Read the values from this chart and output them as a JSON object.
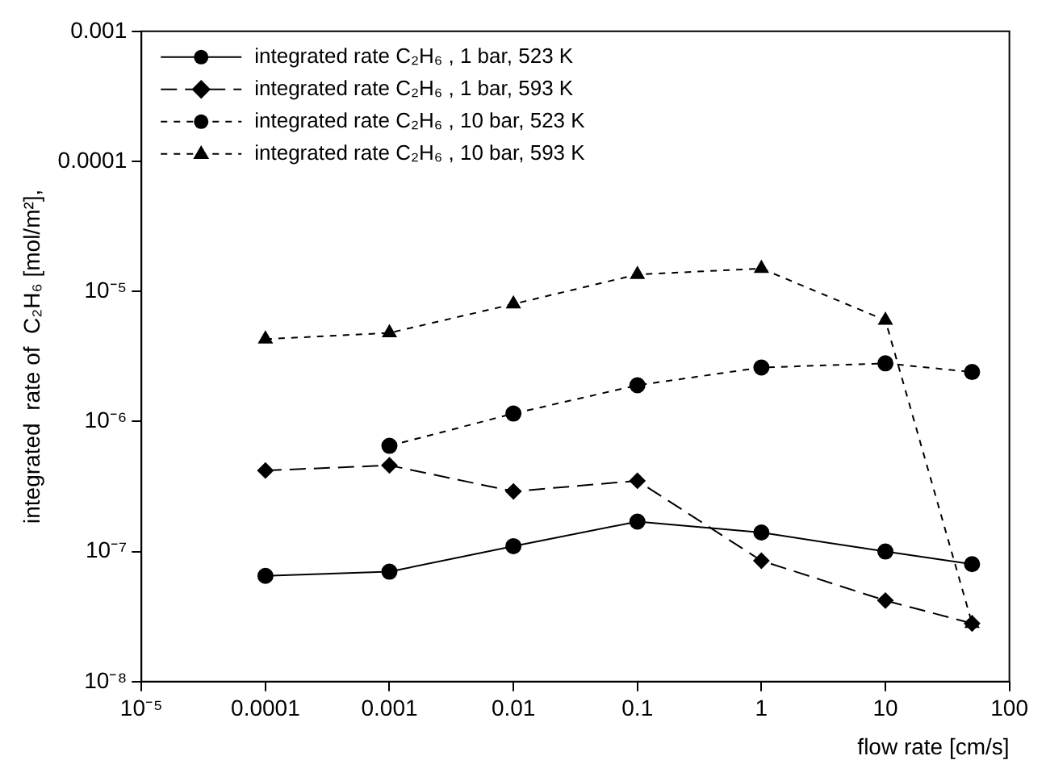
{
  "chart_data": {
    "type": "line",
    "xlabel": "flow rate [cm/s]",
    "ylabel": "integrated  rate of  C₂H₆ [mol/m²],",
    "log": "xy",
    "legend": "top left",
    "grid": false,
    "xlim": [
      1e-05,
      100
    ],
    "xticks": [
      {
        "value": 1e-05,
        "label": "10⁻⁵"
      },
      0.0001,
      0.001,
      0.01,
      0.1,
      1,
      10,
      100
    ],
    "ylim": [
      1e-08,
      0.001
    ],
    "yticks": [
      {
        "value": 1e-08,
        "label": "10⁻⁸"
      },
      {
        "value": 1e-07,
        "label": "10⁻⁷"
      },
      {
        "value": 1e-06,
        "label": "10⁻⁶"
      },
      {
        "value": 1e-05,
        "label": "10⁻⁵"
      },
      0.0001,
      0.001
    ],
    "x": [
      0.0001,
      0.001,
      0.01,
      0.1,
      1,
      10,
      50
    ],
    "series": [
      {
        "name": "integrated rate C₂H₆ , 1 bar, 523 K",
        "color": "#000000",
        "marker": "circle",
        "line_style": "solid",
        "values": [
          6.5e-08,
          7e-08,
          1.1e-07,
          1.7e-07,
          1.4e-07,
          1e-07,
          8e-08
        ]
      },
      {
        "name": "integrated rate C₂H₆ , 1 bar, 593 K",
        "color": "#000000",
        "marker": "diamond",
        "line_style": "dashed",
        "values": [
          4.2e-07,
          4.6e-07,
          2.9e-07,
          3.5e-07,
          8.5e-08,
          4.2e-08,
          2.8e-08
        ]
      },
      {
        "name": "integrated rate C₂H₆ , 10 bar, 523 K",
        "color": "#000000",
        "marker": "circle",
        "line_style": "dotted",
        "values": [
          null,
          6.5e-07,
          1.15e-06,
          1.9e-06,
          2.6e-06,
          2.8e-06,
          2.4e-06
        ]
      },
      {
        "name": "integrated rate C₂H₆ , 10 bar, 593 K",
        "color": "#000000",
        "marker": "triangle",
        "line_style": "dotted",
        "values": [
          4.3e-06,
          4.8e-06,
          8e-06,
          1.35e-05,
          1.5e-05,
          6e-06,
          2.8e-08
        ]
      }
    ]
  }
}
